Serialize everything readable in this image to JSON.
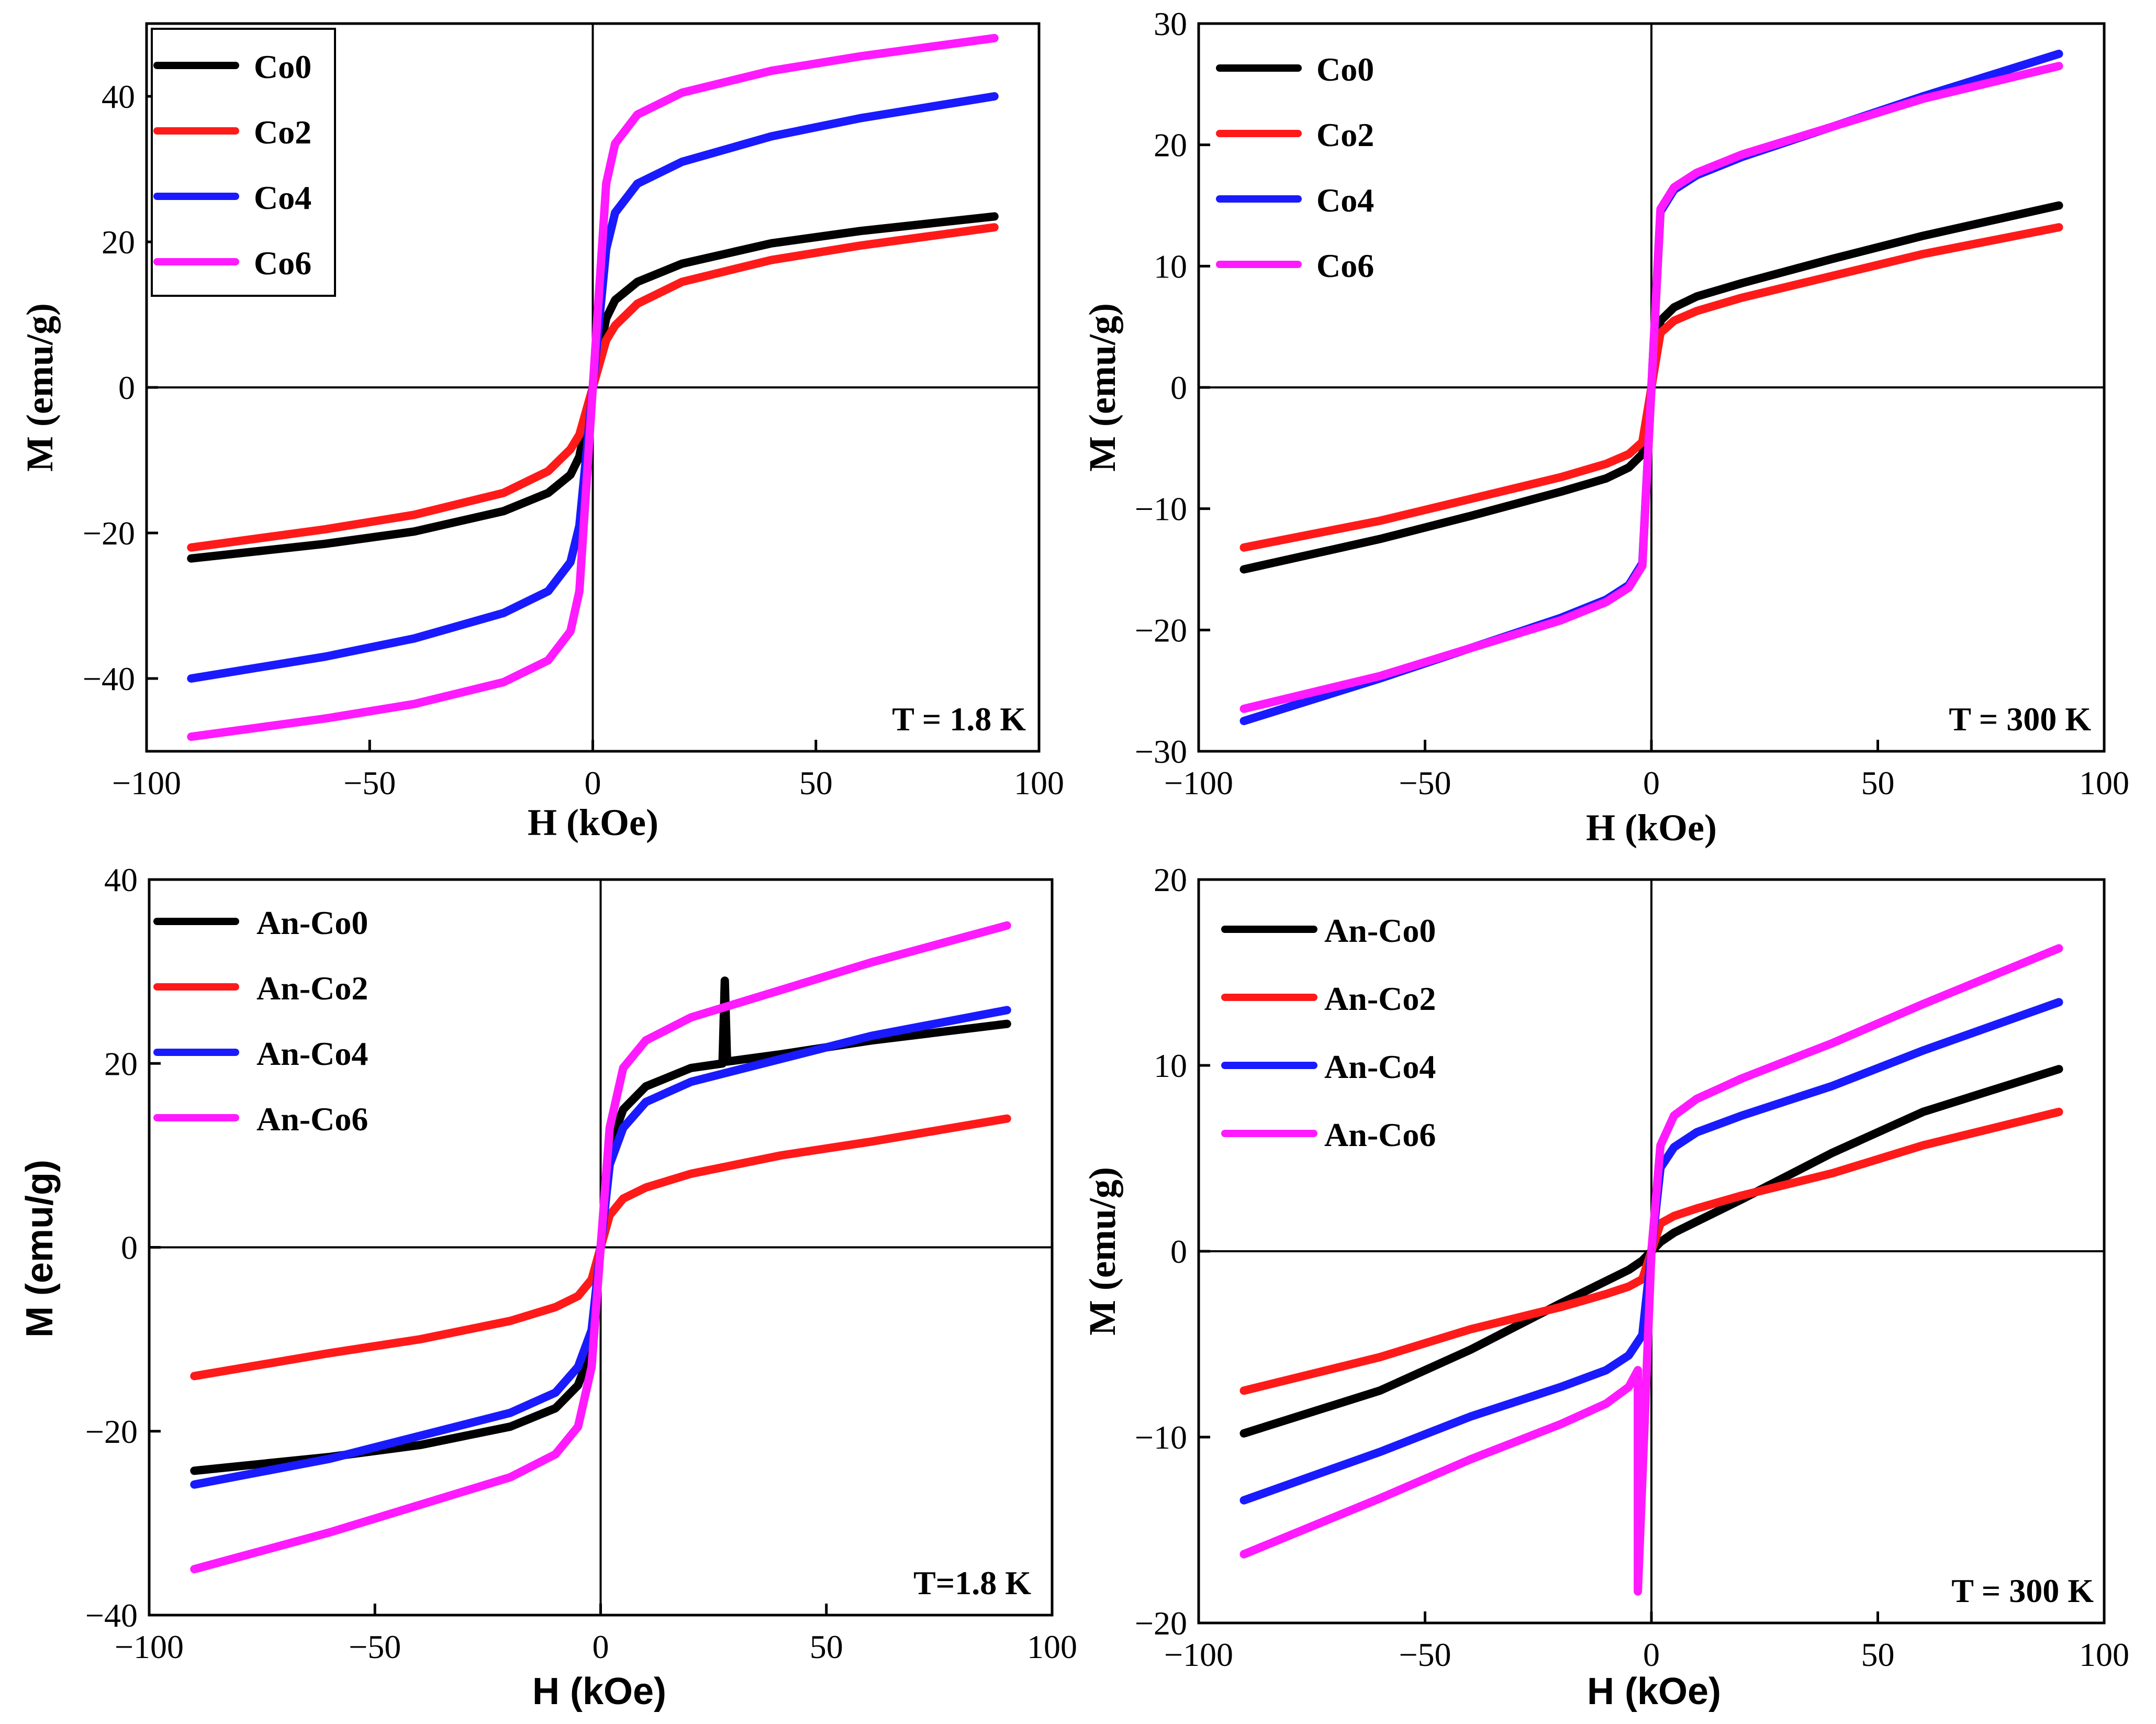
{
  "colors": {
    "black": "#000000",
    "red": "#ff1a1a",
    "blue": "#1a1aff",
    "magenta": "#ff1aff"
  },
  "chart_data": [
    {
      "type": "line",
      "panel": "top-left",
      "xlabel": "H (kOe)",
      "ylabel": "M (emu/g)",
      "xlim": [
        -100,
        100
      ],
      "ylim": [
        -50,
        50
      ],
      "xticks": [
        -100,
        -50,
        0,
        50,
        100
      ],
      "yticks": [
        -40,
        -20,
        0,
        20,
        40
      ],
      "xtick_labels": [
        "−100",
        "−50",
        "0",
        "50",
        "100"
      ],
      "ytick_labels": [
        "−40",
        "−20",
        "0",
        "20",
        "40"
      ],
      "temperature_label": "T = 1.8 K",
      "legend_box": true,
      "series": [
        {
          "name": "Co0",
          "color": "#000000",
          "H": [
            -90,
            -60,
            -40,
            -20,
            -10,
            -5,
            -3,
            0,
            3,
            5,
            10,
            20,
            40,
            60,
            90
          ],
          "M": [
            -23.5,
            -21.5,
            -19.8,
            -17.0,
            -14.5,
            -12.0,
            -9.5,
            0,
            9.5,
            12.0,
            14.5,
            17.0,
            19.8,
            21.5,
            23.5
          ]
        },
        {
          "name": "Co2",
          "color": "#ff1a1a",
          "H": [
            -90,
            -60,
            -40,
            -20,
            -10,
            -5,
            -3,
            0,
            3,
            5,
            10,
            20,
            40,
            60,
            90
          ],
          "M": [
            -22.0,
            -19.5,
            -17.5,
            -14.5,
            -11.5,
            -8.5,
            -6.5,
            0,
            6.5,
            8.5,
            11.5,
            14.5,
            17.5,
            19.5,
            22.0
          ]
        },
        {
          "name": "Co4",
          "color": "#1a1aff",
          "H": [
            -90,
            -60,
            -40,
            -20,
            -10,
            -5,
            -3,
            0,
            3,
            5,
            10,
            20,
            40,
            60,
            90
          ],
          "M": [
            -40.0,
            -37.0,
            -34.5,
            -31.0,
            -28.0,
            -24.0,
            -19.0,
            0,
            19.0,
            24.0,
            28.0,
            31.0,
            34.5,
            37.0,
            40.0
          ]
        },
        {
          "name": "Co6",
          "color": "#ff1aff",
          "H": [
            -90,
            -60,
            -40,
            -20,
            -10,
            -5,
            -3,
            0,
            3,
            5,
            10,
            20,
            40,
            60,
            90
          ],
          "M": [
            -48.0,
            -45.5,
            -43.5,
            -40.5,
            -37.5,
            -33.5,
            -28.0,
            0,
            28.0,
            33.5,
            37.5,
            40.5,
            43.5,
            45.5,
            48.0
          ]
        }
      ]
    },
    {
      "type": "line",
      "panel": "top-right",
      "xlabel": "H (kOe)",
      "ylabel": "M (emu/g)",
      "xlim": [
        -100,
        100
      ],
      "ylim": [
        -30,
        30
      ],
      "xticks": [
        -100,
        -50,
        0,
        50,
        100
      ],
      "yticks": [
        -30,
        -20,
        -10,
        0,
        10,
        20,
        30
      ],
      "xtick_labels": [
        "−100",
        "−50",
        "0",
        "50",
        "100"
      ],
      "ytick_labels": [
        "−30",
        "−20",
        "−10",
        "0",
        "10",
        "20",
        "30"
      ],
      "temperature_label": "T = 300 K",
      "legend_box": false,
      "series": [
        {
          "name": "Co0",
          "color": "#000000",
          "H": [
            -90,
            -60,
            -40,
            -20,
            -10,
            -5,
            -2,
            0,
            2,
            5,
            10,
            20,
            40,
            60,
            90
          ],
          "M": [
            -15.0,
            -12.5,
            -10.6,
            -8.6,
            -7.5,
            -6.6,
            -5.5,
            0,
            5.5,
            6.6,
            7.5,
            8.6,
            10.6,
            12.5,
            15.0
          ]
        },
        {
          "name": "Co2",
          "color": "#ff1a1a",
          "H": [
            -90,
            -60,
            -40,
            -20,
            -10,
            -5,
            -2,
            0,
            2,
            5,
            10,
            20,
            40,
            60,
            90
          ],
          "M": [
            -13.2,
            -11.0,
            -9.2,
            -7.4,
            -6.3,
            -5.5,
            -4.5,
            0,
            4.5,
            5.5,
            6.3,
            7.4,
            9.2,
            11.0,
            13.2
          ]
        },
        {
          "name": "Co4",
          "color": "#1a1aff",
          "H": [
            -90,
            -60,
            -40,
            -20,
            -10,
            -5,
            -2,
            0,
            2,
            5,
            10,
            20,
            40,
            60,
            90
          ],
          "M": [
            -27.5,
            -24.0,
            -21.5,
            -19.0,
            -17.5,
            -16.3,
            -14.5,
            0,
            14.5,
            16.3,
            17.5,
            19.0,
            21.5,
            24.0,
            27.5
          ]
        },
        {
          "name": "Co6",
          "color": "#ff1aff",
          "H": [
            -90,
            -60,
            -40,
            -20,
            -10,
            -5,
            -2,
            0,
            2,
            5,
            10,
            20,
            40,
            60,
            90
          ],
          "M": [
            -26.5,
            -23.8,
            -21.5,
            -19.2,
            -17.7,
            -16.5,
            -14.7,
            0,
            14.7,
            16.5,
            17.7,
            19.2,
            21.5,
            23.8,
            26.5
          ]
        }
      ]
    },
    {
      "type": "line",
      "panel": "bottom-left",
      "xlabel": "H (kOe)",
      "ylabel": "M (emu/g)",
      "xlim": [
        -100,
        100
      ],
      "ylim": [
        -40,
        40
      ],
      "xticks": [
        -100,
        -50,
        0,
        50,
        100
      ],
      "yticks": [
        -40,
        -20,
        0,
        20,
        40
      ],
      "xtick_labels": [
        "−100",
        "−50",
        "0",
        "50",
        "100"
      ],
      "ytick_labels": [
        "−40",
        "−20",
        "0",
        "20",
        "40"
      ],
      "temperature_label": "T=1.8 K",
      "legend_box": false,
      "series": [
        {
          "name": "An-Co0",
          "color": "#000000",
          "H": [
            -90,
            -60,
            -40,
            -20,
            -10,
            -5,
            -2,
            0,
            2,
            5,
            10,
            20,
            27,
            27.5,
            28,
            40,
            60,
            90
          ],
          "M": [
            -24.3,
            -22.8,
            -21.5,
            -19.5,
            -17.5,
            -15.0,
            -11.0,
            0,
            11.0,
            15.0,
            17.5,
            19.5,
            20.0,
            29.0,
            20.2,
            21.0,
            22.5,
            24.3
          ]
        },
        {
          "name": "An-Co2",
          "color": "#ff1a1a",
          "H": [
            -90,
            -60,
            -40,
            -20,
            -10,
            -5,
            -2,
            0,
            2,
            5,
            10,
            20,
            40,
            60,
            90
          ],
          "M": [
            -14.0,
            -11.5,
            -10.0,
            -8.0,
            -6.5,
            -5.3,
            -3.5,
            0,
            3.5,
            5.3,
            6.5,
            8.0,
            10.0,
            11.5,
            14.0
          ]
        },
        {
          "name": "An-Co4",
          "color": "#1a1aff",
          "H": [
            -90,
            -60,
            -40,
            -20,
            -10,
            -5,
            -2,
            0,
            2,
            5,
            10,
            20,
            40,
            60,
            90
          ],
          "M": [
            -25.8,
            -23.0,
            -20.5,
            -18.0,
            -15.8,
            -13.0,
            -9.0,
            0,
            9.0,
            13.0,
            15.8,
            18.0,
            20.5,
            23.0,
            25.8
          ]
        },
        {
          "name": "An-Co6",
          "color": "#ff1aff",
          "H": [
            -90,
            -60,
            -40,
            -20,
            -10,
            -5,
            -2,
            0,
            2,
            5,
            10,
            20,
            40,
            60,
            90
          ],
          "M": [
            -35.0,
            -31.0,
            -28.0,
            -25.0,
            -22.5,
            -19.5,
            -13.0,
            0,
            13.0,
            19.5,
            22.5,
            25.0,
            28.0,
            31.0,
            35.0
          ]
        }
      ]
    },
    {
      "type": "line",
      "panel": "bottom-right",
      "xlabel": "H (kOe)",
      "ylabel": "M (emu/g)",
      "xlim": [
        -100,
        100
      ],
      "ylim": [
        -20,
        20
      ],
      "xticks": [
        -100,
        -50,
        0,
        50,
        100
      ],
      "yticks": [
        -20,
        -10,
        0,
        10,
        20
      ],
      "xtick_labels": [
        "−100",
        "−50",
        "0",
        "50",
        "100"
      ],
      "ytick_labels": [
        "−20",
        "−10",
        "0",
        "10",
        "20"
      ],
      "temperature_label": "T = 300 K",
      "legend_box": false,
      "series": [
        {
          "name": "An-Co0",
          "color": "#000000",
          "H": [
            -90,
            -60,
            -40,
            -20,
            -10,
            -5,
            -2,
            0,
            2,
            5,
            10,
            20,
            40,
            60,
            90
          ],
          "M": [
            -9.8,
            -7.5,
            -5.3,
            -2.8,
            -1.6,
            -1.0,
            -0.5,
            0,
            0.5,
            1.0,
            1.6,
            2.8,
            5.3,
            7.5,
            9.8
          ]
        },
        {
          "name": "An-Co2",
          "color": "#ff1a1a",
          "H": [
            -90,
            -60,
            -40,
            -20,
            -10,
            -5,
            -2,
            0,
            2,
            5,
            10,
            20,
            40,
            60,
            90
          ],
          "M": [
            -7.5,
            -5.7,
            -4.2,
            -3.0,
            -2.3,
            -1.9,
            -1.5,
            0,
            1.5,
            1.9,
            2.3,
            3.0,
            4.2,
            5.7,
            7.5
          ]
        },
        {
          "name": "An-Co4",
          "color": "#1a1aff",
          "H": [
            -90,
            -60,
            -40,
            -20,
            -10,
            -5,
            -2,
            0,
            2,
            5,
            10,
            20,
            40,
            60,
            90
          ],
          "M": [
            -13.4,
            -10.8,
            -8.9,
            -7.3,
            -6.4,
            -5.6,
            -4.5,
            0,
            4.5,
            5.6,
            6.4,
            7.3,
            8.9,
            10.8,
            13.4
          ]
        },
        {
          "name": "An-Co6",
          "color": "#ff1aff",
          "H": [
            -90,
            -60,
            -40,
            -20,
            -10,
            -5,
            -3,
            -3,
            0,
            2,
            5,
            10,
            20,
            40,
            60,
            90
          ],
          "M": [
            -16.3,
            -13.3,
            -11.2,
            -9.3,
            -8.2,
            -7.3,
            -6.4,
            -18.3,
            0,
            5.7,
            7.3,
            8.2,
            9.3,
            11.2,
            13.3,
            16.3
          ]
        }
      ]
    }
  ]
}
